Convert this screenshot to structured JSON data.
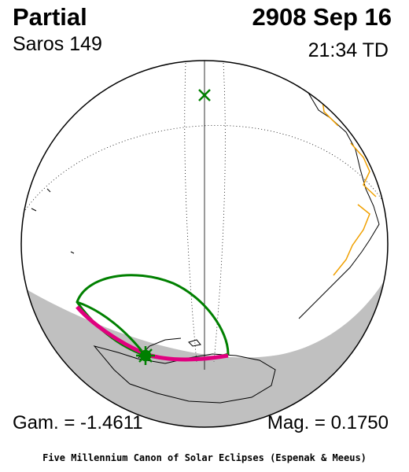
{
  "header": {
    "eclipse_type": "Partial",
    "saros": "Saros 149",
    "date": "2908 Sep 16",
    "time": "21:34 TD"
  },
  "footer": {
    "gamma": "Gam. = -1.4611",
    "magnitude": "Mag. = 0.1750",
    "credit": "Five Millennium Canon of Solar Eclipses (Espenak & Meeus)"
  },
  "colors": {
    "night_shade": "#c0c0c0",
    "coastline": "#000000",
    "borders": "#f0a000",
    "eclipse_limit": "#008000",
    "max_eclipse_curve": "#e0007f",
    "greatest_eclipse_marker": "#008000"
  },
  "markers": {
    "greatest_eclipse": "star-icon",
    "subsolar_point": "x-icon"
  }
}
